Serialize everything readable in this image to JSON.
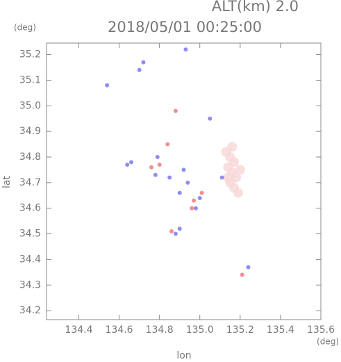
{
  "chart_data": {
    "type": "scatter",
    "title": "2018/05/01 00:25:00",
    "subtitle": "ALT(km) 2.0",
    "x_label": "lon",
    "y_label": "lat",
    "x_unit": "(deg)",
    "y_unit": "(deg)",
    "xlim": [
      134.24,
      135.6
    ],
    "ylim": [
      34.165,
      35.245
    ],
    "xticks": [
      134.4,
      134.6,
      134.8,
      {
        "value": 135,
        "label": "135.0"
      },
      135.2,
      135.4,
      135.6
    ],
    "yticks": [
      34.2,
      34.3,
      34.4,
      34.5,
      34.6,
      34.7,
      34.8,
      34.9,
      {
        "value": 35,
        "label": "35.0"
      },
      35.1,
      35.2
    ],
    "series": [
      {
        "color": "#f8d8d8",
        "x": [
          135.13,
          135.15,
          135.17,
          135.14,
          135.16,
          135.18,
          135.15,
          135.17,
          135.19,
          135.2,
          135.14,
          135.16
        ],
        "y": [
          34.82,
          34.8,
          34.78,
          34.76,
          34.74,
          34.72,
          34.7,
          34.68,
          34.66,
          34.75,
          34.72,
          34.84
        ]
      },
      {
        "color": "#7a7af0",
        "x": [
          134.54,
          134.72,
          134.7,
          134.64,
          134.66,
          134.79,
          134.78,
          134.85,
          134.92,
          134.94,
          134.9,
          135.0,
          134.98,
          134.88,
          134.9,
          135.05,
          135.24,
          135.11,
          134.93
        ],
        "y": [
          35.08,
          35.17,
          35.14,
          34.77,
          34.78,
          34.8,
          34.73,
          34.72,
          34.75,
          34.7,
          34.66,
          34.64,
          34.6,
          34.5,
          34.52,
          34.95,
          34.37,
          34.72,
          35.22
        ]
      },
      {
        "color": "#f07a7a",
        "x": [
          134.76,
          134.8,
          134.88,
          135.01,
          134.97,
          134.86,
          135.21,
          134.84,
          134.96
        ],
        "y": [
          34.76,
          34.77,
          34.98,
          34.66,
          34.63,
          34.51,
          34.34,
          34.85,
          34.6
        ]
      }
    ]
  }
}
